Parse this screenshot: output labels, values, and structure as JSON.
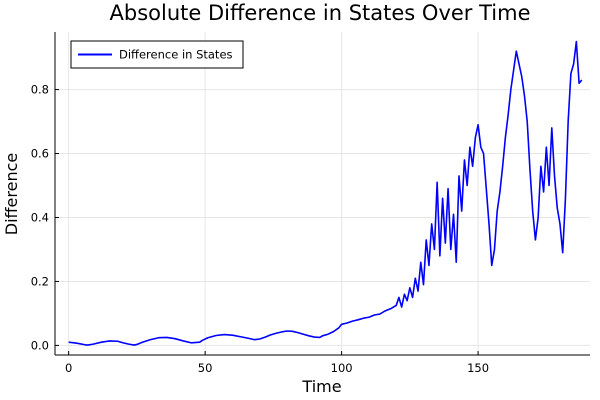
{
  "chart_data": {
    "type": "line",
    "title": "Absolute Difference in States Over Time",
    "xlabel": "Time",
    "ylabel": "Difference",
    "xlim": [
      -5,
      191
    ],
    "ylim": [
      -0.03,
      0.98
    ],
    "xticks": [
      0,
      50,
      100,
      150
    ],
    "yticks": [
      0.0,
      0.2,
      0.4,
      0.6,
      0.8
    ],
    "xtick_labels": [
      "0",
      "50",
      "100",
      "150"
    ],
    "ytick_labels": [
      "0.0",
      "0.2",
      "0.4",
      "0.6",
      "0.8"
    ],
    "grid": true,
    "legend_position": "top-left",
    "series": [
      {
        "name": "Difference in States",
        "color": "#0000ff",
        "x": [
          0,
          3,
          6,
          7,
          9,
          12,
          15,
          18,
          20,
          22,
          24,
          25,
          27,
          30,
          33,
          36,
          39,
          42,
          45,
          48,
          49,
          51,
          54,
          57,
          60,
          63,
          66,
          68,
          70,
          72,
          74,
          76,
          78,
          80,
          82,
          84,
          86,
          88,
          90,
          92,
          93,
          95,
          97,
          99,
          100,
          102,
          104,
          106,
          108,
          110,
          112,
          114,
          116,
          118,
          120,
          121,
          122,
          123,
          124,
          125,
          126,
          127,
          128,
          129,
          130,
          131,
          132,
          133,
          134,
          135,
          136,
          137,
          138,
          139,
          140,
          141,
          142,
          143,
          144,
          145,
          146,
          147,
          148,
          149,
          150,
          151,
          152,
          153,
          154,
          155,
          156,
          157,
          158,
          159,
          160,
          161,
          162,
          163,
          164,
          165,
          166,
          167,
          168,
          169,
          170,
          171,
          172,
          173,
          174,
          175,
          176,
          177,
          178,
          179,
          180,
          181,
          182,
          183,
          184,
          185,
          186,
          187,
          188
        ],
        "y": [
          0.01,
          0.007,
          0.002,
          0.001,
          0.004,
          0.01,
          0.014,
          0.013,
          0.008,
          0.004,
          0.001,
          0.003,
          0.01,
          0.018,
          0.024,
          0.025,
          0.021,
          0.014,
          0.008,
          0.01,
          0.016,
          0.024,
          0.031,
          0.034,
          0.032,
          0.027,
          0.022,
          0.018,
          0.02,
          0.026,
          0.033,
          0.038,
          0.042,
          0.045,
          0.044,
          0.04,
          0.035,
          0.03,
          0.026,
          0.025,
          0.03,
          0.035,
          0.043,
          0.055,
          0.066,
          0.07,
          0.076,
          0.08,
          0.085,
          0.088,
          0.095,
          0.098,
          0.108,
          0.115,
          0.125,
          0.15,
          0.12,
          0.16,
          0.14,
          0.18,
          0.15,
          0.21,
          0.17,
          0.26,
          0.19,
          0.33,
          0.25,
          0.38,
          0.3,
          0.51,
          0.28,
          0.46,
          0.32,
          0.49,
          0.3,
          0.41,
          0.26,
          0.53,
          0.42,
          0.58,
          0.5,
          0.62,
          0.56,
          0.65,
          0.69,
          0.62,
          0.6,
          0.49,
          0.38,
          0.25,
          0.3,
          0.42,
          0.48,
          0.56,
          0.65,
          0.72,
          0.8,
          0.86,
          0.92,
          0.88,
          0.84,
          0.78,
          0.7,
          0.55,
          0.42,
          0.33,
          0.4,
          0.56,
          0.48,
          0.62,
          0.5,
          0.68,
          0.53,
          0.43,
          0.38,
          0.29,
          0.46,
          0.7,
          0.85,
          0.88,
          0.95,
          0.82,
          0.83
        ]
      }
    ]
  }
}
